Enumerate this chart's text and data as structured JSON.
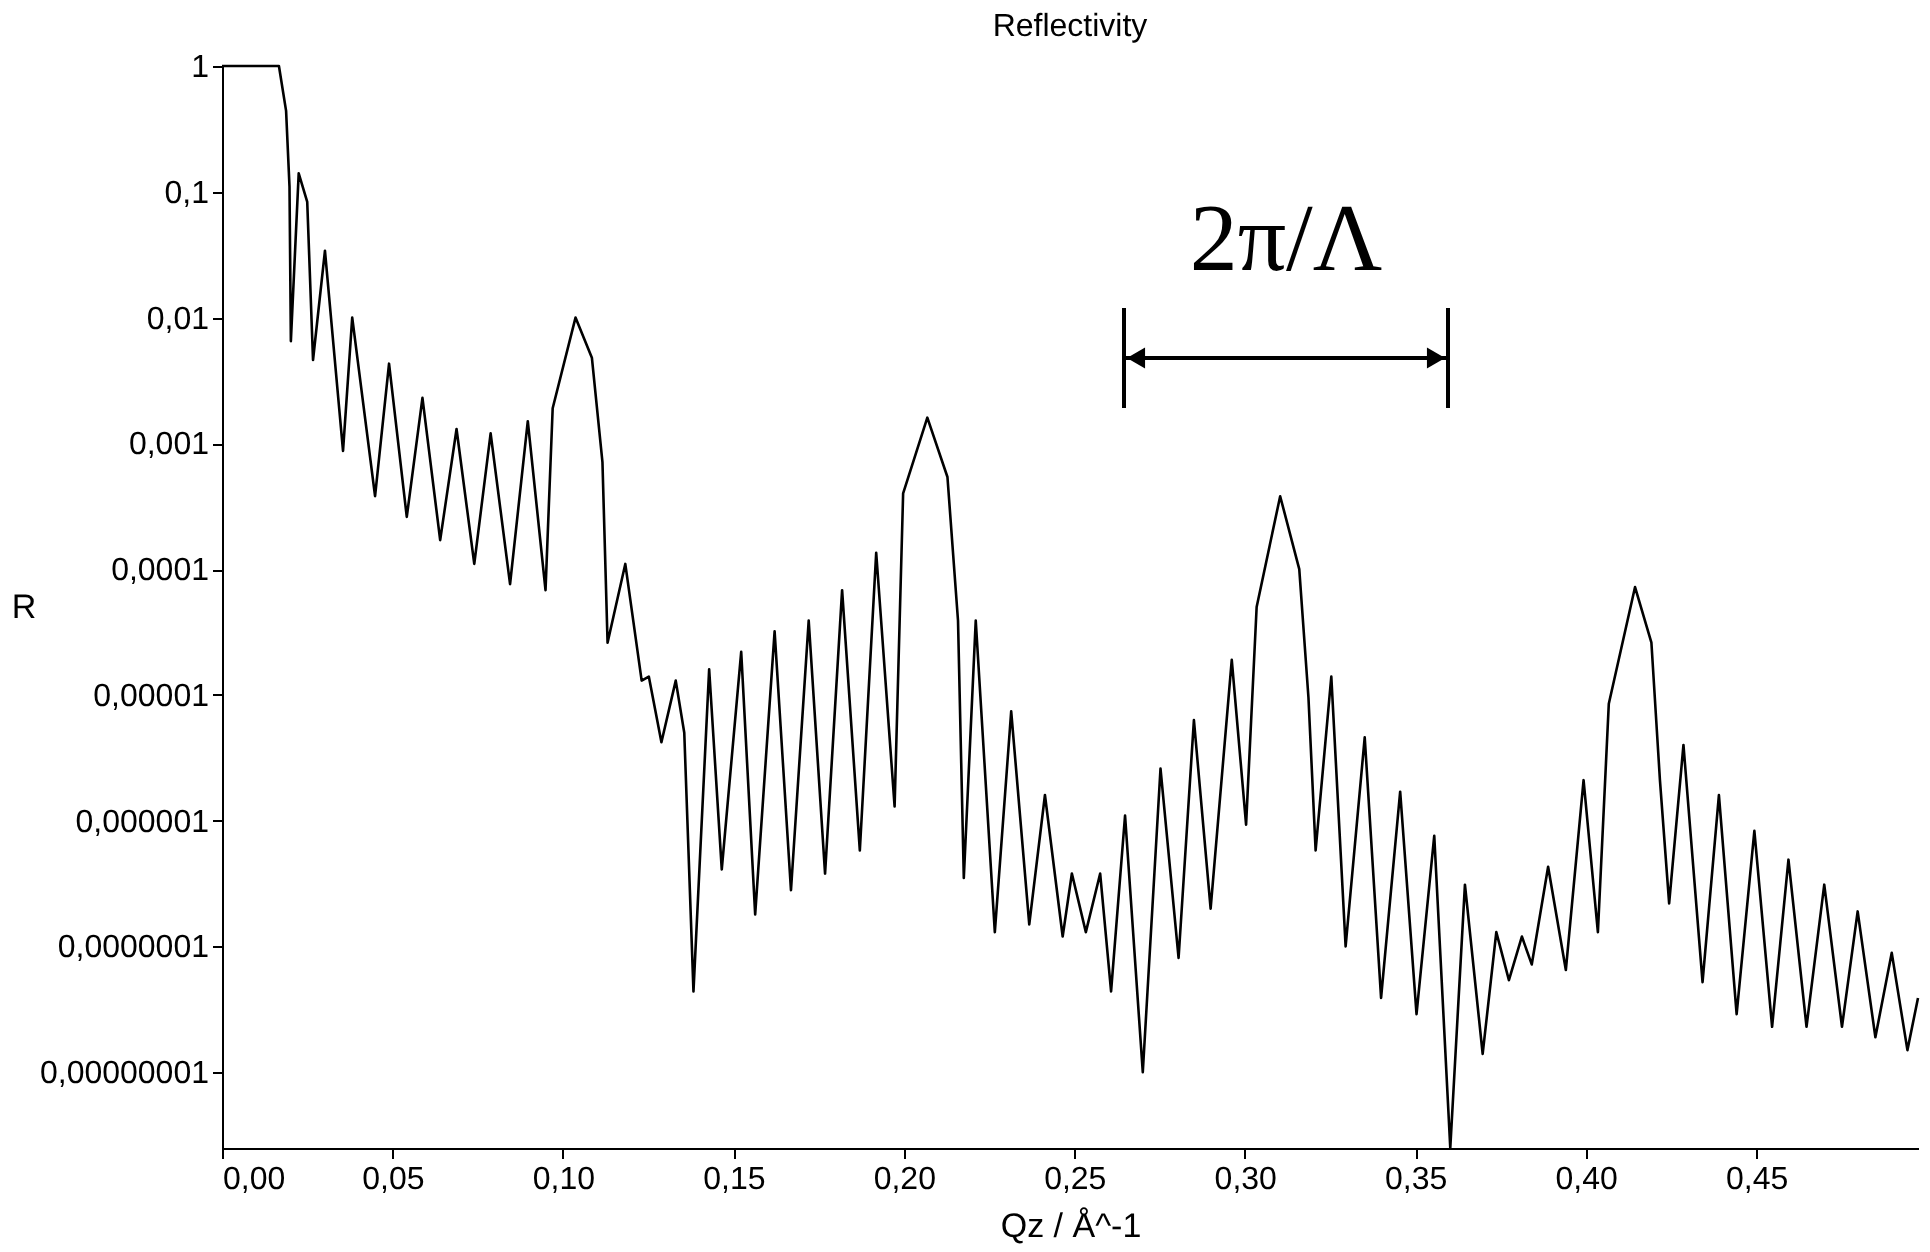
{
  "chart_data": {
    "type": "line",
    "title": "Reflectivity",
    "xlabel": "Qz / Å^-1",
    "ylabel": "R",
    "x": [
      0,
      0.0167,
      0.0188,
      0.0198,
      0.0202,
      0.0225,
      0.025,
      0.0267,
      0.0302,
      0.0355,
      0.0382,
      0.0449,
      0.049,
      0.0542,
      0.0588,
      0.064,
      0.0688,
      0.074,
      0.0788,
      0.0845,
      0.0897,
      0.0949,
      0.097,
      0.1037,
      0.1085,
      0.1116,
      0.1131,
      0.1183,
      0.1231,
      0.1252,
      0.1289,
      0.1331,
      0.1356,
      0.1383,
      0.1429,
      0.1466,
      0.1523,
      0.1564,
      0.1621,
      0.1669,
      0.1721,
      0.1769,
      0.1819,
      0.1871,
      0.1919,
      0.1973,
      0.1998,
      0.2069,
      0.2128,
      0.2159,
      0.2176,
      0.2211,
      0.2267,
      0.2315,
      0.2368,
      0.2414,
      0.2466,
      0.2493,
      0.2534,
      0.2576,
      0.2608,
      0.2649,
      0.2701,
      0.2753,
      0.2806,
      0.2851,
      0.29,
      0.2962,
      0.3004,
      0.3035,
      0.3104,
      0.316,
      0.3187,
      0.3208,
      0.3254,
      0.3296,
      0.3352,
      0.34,
      0.3456,
      0.3504,
      0.3556,
      0.3603,
      0.3646,
      0.3698,
      0.3738,
      0.3775,
      0.3813,
      0.3842,
      0.389,
      0.3942,
      0.3994,
      0.4036,
      0.4068,
      0.4145,
      0.4193,
      0.4218,
      0.4245,
      0.4287,
      0.4343,
      0.4391,
      0.4443,
      0.4495,
      0.4547,
      0.4595,
      0.4648,
      0.47,
      0.4752,
      0.4798,
      0.485,
      0.4898,
      0.4944,
      0.4975
    ],
    "series": [
      {
        "color": "#000000",
        "values": [
          1,
          1,
          0.44,
          0.11,
          0.0065,
          0.14,
          0.083,
          0.0046,
          0.034,
          0.00087,
          0.01,
          0.00038,
          0.0043,
          0.00026,
          0.0023,
          0.00017,
          0.0013,
          0.00011,
          0.0012,
          7.6e-05,
          0.0015,
          6.8e-05,
          0.0019,
          0.01,
          0.0048,
          0.00071,
          2.6e-05,
          0.00011,
          1.3e-05,
          1.4e-05,
          4.2e-06,
          1.3e-05,
          5e-06,
          4.4e-08,
          1.6e-05,
          4.1e-07,
          2.2e-05,
          1.8e-07,
          3.2e-05,
          2.8e-07,
          3.9e-05,
          3.8e-07,
          6.8e-05,
          5.8e-07,
          0.000135,
          1.3e-06,
          0.0004,
          0.0016,
          0.00054,
          3.9e-05,
          3.5e-07,
          3.9e-05,
          1.3e-07,
          7.4e-06,
          1.5e-07,
          1.6e-06,
          1.2e-07,
          3.8e-07,
          1.3e-07,
          3.8e-07,
          4.4e-08,
          1.1e-06,
          1e-08,
          2.6e-06,
          8.1e-08,
          6.3e-06,
          2e-07,
          1.9e-05,
          9.3e-07,
          5e-05,
          0.00038,
          0.0001,
          9.5e-06,
          5.8e-07,
          1.4e-05,
          1e-07,
          4.6e-06,
          3.9e-08,
          1.7e-06,
          2.9e-08,
          7.6e-07,
          2.5e-09,
          3.1e-07,
          1.4e-08,
          1.3e-07,
          5.4e-08,
          1.2e-07,
          7.2e-08,
          4.3e-07,
          6.5e-08,
          2.1e-06,
          1.3e-07,
          8.5e-06,
          7.2e-05,
          2.6e-05,
          2.1e-06,
          2.2e-07,
          4e-06,
          5.2e-08,
          1.6e-06,
          2.9e-08,
          8.3e-07,
          2.3e-08,
          4.9e-07,
          2.3e-08,
          3.1e-07,
          2.3e-08,
          1.9e-07,
          1.9e-08,
          8.9e-08,
          1.5e-08,
          3.9e-08
        ]
      }
    ],
    "xlim": [
      0,
      0.4975
    ],
    "ylim": [
      2.5e-09,
      1
    ],
    "log": "y",
    "xticks": [
      {
        "value": 0,
        "label": "0,00"
      },
      {
        "value": 0.05,
        "label": "0,05"
      },
      {
        "value": 0.1,
        "label": "0,10"
      },
      {
        "value": 0.15,
        "label": "0,15"
      },
      {
        "value": 0.2,
        "label": "0,20"
      },
      {
        "value": 0.25,
        "label": "0,25"
      },
      {
        "value": 0.3,
        "label": "0,30"
      },
      {
        "value": 0.35,
        "label": "0,35"
      },
      {
        "value": 0.4,
        "label": "0,40"
      },
      {
        "value": 0.45,
        "label": "0,45"
      }
    ],
    "yticks": [
      1,
      {
        "value": 0.1,
        "label": "0,1"
      },
      {
        "value": 0.01,
        "label": "0,01"
      },
      {
        "value": 0.001,
        "label": "0,001"
      },
      {
        "value": 0.0001,
        "label": "0,0001"
      },
      {
        "value": 1e-05,
        "label": "0,00001"
      },
      {
        "value": 1e-06,
        "label": "0,000001"
      },
      {
        "value": 1e-07,
        "label": "0,0000001"
      },
      {
        "value": 1e-08,
        "label": "0,00000001"
      }
    ],
    "annotations": [
      "2π/Λ"
    ],
    "grid": false,
    "marker": "none",
    "line_style": "solid"
  }
}
